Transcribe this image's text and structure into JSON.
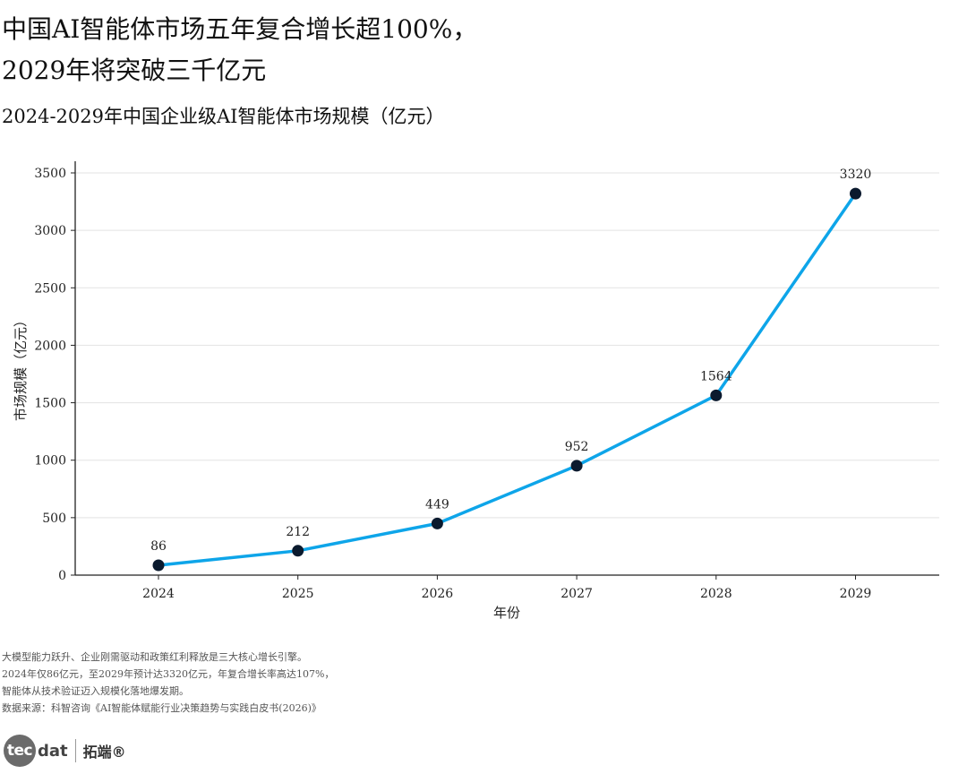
{
  "headline": {
    "line1": "中国AI智能体市场五年复合增长超100%，",
    "line2": "2029年将突破三千亿元"
  },
  "chart_data": {
    "type": "line",
    "title": "2024-2029年中国企业级AI智能体市场规模（亿元）",
    "xlabel": "年份",
    "ylabel": "市场规模（亿元）",
    "categories": [
      "2024",
      "2025",
      "2026",
      "2027",
      "2028",
      "2029"
    ],
    "values": [
      86,
      212,
      449,
      952,
      1564,
      3320
    ],
    "ylim": [
      0,
      3650
    ],
    "yticks": [
      0,
      500,
      1000,
      1500,
      2000,
      2500,
      3000,
      3500
    ],
    "grid": "horizontal",
    "line_color": "#0ea5e9",
    "marker_color": "#0b1a2e",
    "data_labels": true
  },
  "notes": [
    "大模型能力跃升、企业刚需驱动和政策红利释放是三大核心增长引擎。",
    "2024年仅86亿元，至2029年预计达3320亿元，年复合增长率高达107%，",
    "智能体从技术验证迈入规模化落地爆发期。",
    "数据来源：科智咨询《AI智能体赋能行业决策趋势与实践白皮书(2026)》"
  ],
  "logo": {
    "circle_text": "tec",
    "rest_text": "dat",
    "cn_text": "拓端®"
  }
}
